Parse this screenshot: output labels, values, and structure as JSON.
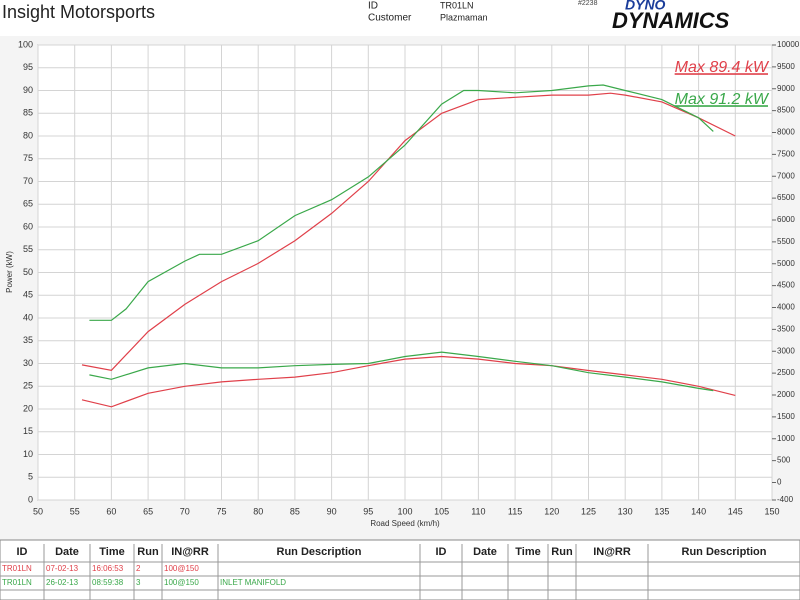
{
  "header": {
    "company": "Insight Motorsports",
    "id_label": "ID",
    "id_value": "TR01LN",
    "customer_label": "Customer",
    "customer_value": "Plazmaman",
    "job": "#2238",
    "logo": [
      "DYNO",
      "DYNAMICS"
    ]
  },
  "chart_data": {
    "type": "line",
    "xlabel": "Road Speed (km/h)",
    "ylabel": "Power (kW)",
    "xlim": [
      50,
      150
    ],
    "xticks": [
      50,
      55,
      60,
      65,
      70,
      75,
      80,
      85,
      90,
      95,
      100,
      105,
      110,
      115,
      120,
      125,
      130,
      135,
      140,
      145,
      150
    ],
    "ylim": [
      0,
      100
    ],
    "yticks": [
      0,
      5,
      10,
      15,
      20,
      25,
      30,
      35,
      40,
      45,
      50,
      55,
      60,
      65,
      70,
      75,
      80,
      85,
      90,
      95,
      100
    ],
    "y2lim": [
      -400,
      10000
    ],
    "y2ticks": [
      10000,
      9500,
      9000,
      8500,
      8000,
      7500,
      7000,
      6500,
      6000,
      5500,
      5000,
      4500,
      4000,
      3500,
      3000,
      2500,
      2000,
      1500,
      1000,
      500,
      0,
      -400
    ],
    "grid": true,
    "series": [
      {
        "color": "#e0404a",
        "x": [
          56,
          60,
          65,
          70,
          75,
          80,
          85,
          90,
          95,
          100,
          105,
          110,
          115,
          120,
          125,
          128,
          130,
          135,
          140,
          145
        ],
        "values": [
          29.7,
          28.5,
          37,
          43,
          48,
          52,
          57,
          63,
          70,
          79,
          85,
          88,
          88.5,
          89,
          89,
          89.4,
          89,
          87.5,
          84,
          80
        ]
      },
      {
        "color": "#3aa84a",
        "x": [
          57,
          60,
          62,
          65,
          70,
          72,
          75,
          80,
          85,
          90,
          95,
          100,
          105,
          108,
          110,
          115,
          120,
          125,
          127,
          130,
          135,
          140,
          142
        ],
        "values": [
          39.5,
          39.5,
          42,
          48,
          52.5,
          54,
          54,
          57,
          62.5,
          66,
          71,
          78,
          87,
          90,
          90,
          89.5,
          90,
          91,
          91.2,
          90,
          88,
          84,
          81
        ]
      },
      {
        "color": "#e0404a",
        "axis": "y2",
        "x": [
          56,
          60,
          65,
          70,
          75,
          80,
          85,
          90,
          95,
          100,
          105,
          110,
          115,
          120,
          125,
          130,
          135,
          140,
          145
        ],
        "values": [
          1890,
          1730,
          2040,
          2200,
          2300,
          2360,
          2410,
          2510,
          2670,
          2820,
          2880,
          2820,
          2720,
          2670,
          2560,
          2460,
          2360,
          2200,
          1990
        ]
      },
      {
        "color": "#3aa84a",
        "axis": "y2",
        "x": [
          57,
          60,
          65,
          70,
          75,
          80,
          85,
          90,
          95,
          100,
          105,
          110,
          115,
          120,
          125,
          130,
          135,
          140,
          142
        ],
        "values": [
          2460,
          2360,
          2620,
          2720,
          2620,
          2620,
          2670,
          2700,
          2720,
          2880,
          2980,
          2880,
          2770,
          2670,
          2510,
          2410,
          2300,
          2150,
          2100
        ]
      }
    ],
    "annotations": [
      {
        "text": "Max 89.4 kW",
        "color": "#e0404a"
      },
      {
        "text": "Max 91.2 kW",
        "color": "#3aa84a"
      }
    ]
  },
  "table": {
    "headers": [
      "ID",
      "Date",
      "Time",
      "Run",
      "IN@RR",
      "Run Description",
      "ID",
      "Date",
      "Time",
      "Run",
      "IN@RR",
      "Run Description"
    ],
    "rows": [
      {
        "color": "#e0404a",
        "cells": [
          "TR01LN",
          "07-02-13",
          "16:06:53",
          "2",
          "100@150"
        ]
      },
      {
        "color": "#3aa84a",
        "cells": [
          "TR01LN",
          "26-02-13",
          "08:59:38",
          "3",
          "100@150",
          "INLET MANIFOLD"
        ]
      }
    ]
  }
}
